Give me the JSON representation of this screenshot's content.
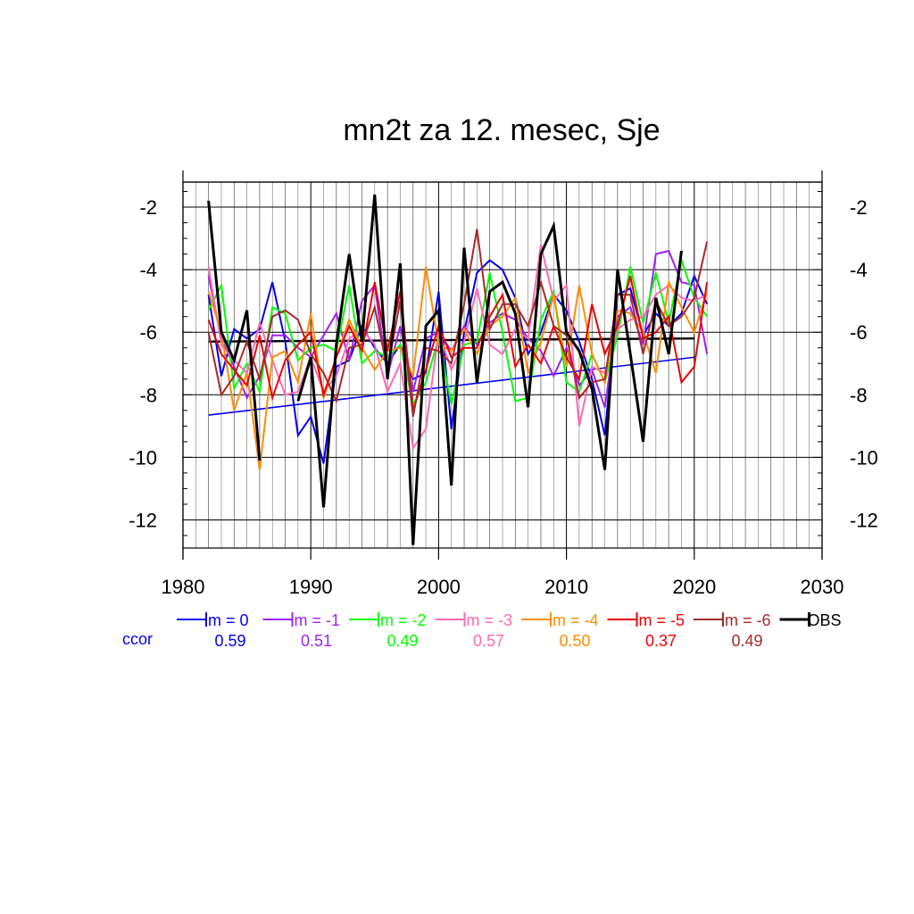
{
  "chart_data": {
    "type": "line",
    "title": "mn2t za 12. mesec, Sje",
    "xlabel": "",
    "ylabel": "",
    "xlim": [
      1980,
      2030
    ],
    "ylim": [
      -12.9,
      -1.2
    ],
    "xticks": [
      1980,
      1990,
      2000,
      2010,
      2020,
      2030
    ],
    "yticks": [
      -2,
      -4,
      -6,
      -8,
      -10,
      -12
    ],
    "grid": true,
    "legend_position": "bottom",
    "ccor_label": "ccor",
    "x": [
      1982,
      1983,
      1984,
      1985,
      1986,
      1987,
      1988,
      1989,
      1990,
      1991,
      1992,
      1993,
      1994,
      1995,
      1996,
      1997,
      1998,
      1999,
      2000,
      2001,
      2002,
      2003,
      2004,
      2005,
      2006,
      2007,
      2008,
      2009,
      2010,
      2011,
      2012,
      2013,
      2014,
      2015,
      2016,
      2017,
      2018,
      2019,
      2020,
      2021
    ],
    "series": [
      {
        "name": "lm = 0",
        "color": "#0000ee",
        "ccor": "0.59",
        "values": [
          -4.8,
          -7.4,
          -5.9,
          -6.2,
          -5.9,
          -4.4,
          -6.3,
          -9.3,
          -8.7,
          -10.2,
          -7.1,
          -6.9,
          -5.8,
          -6.5,
          -7.0,
          -6.4,
          -7.5,
          -7.3,
          -4.7,
          -9.1,
          -6.0,
          -4.1,
          -3.7,
          -4.0,
          -4.9,
          -6.7,
          -6.0,
          -4.8,
          -5.3,
          -6.3,
          -7.5,
          -9.3,
          -4.8,
          -4.6,
          -6.1,
          -5.4,
          -5.8,
          -5.4,
          -4.2,
          -5.1
        ]
      },
      {
        "name": "lm = -1",
        "color": "#a020f0",
        "ccor": "0.51",
        "values": [
          -4.2,
          -6.2,
          -7.1,
          -8.1,
          -7.4,
          -6.1,
          -6.1,
          -6.5,
          -6.8,
          -6.1,
          -5.4,
          -6.9,
          -5.0,
          -4.5,
          -7.4,
          -5.8,
          -7.9,
          -6.2,
          -6.0,
          -6.6,
          -5.8,
          -6.4,
          -5.7,
          -5.4,
          -5.6,
          -6.2,
          -6.6,
          -7.4,
          -6.5,
          -7.7,
          -7.2,
          -8.4,
          -5.5,
          -5.2,
          -6.4,
          -3.5,
          -3.4,
          -4.4,
          -4.5,
          -6.7
        ]
      },
      {
        "name": "lm = -2",
        "color": "#00ff00",
        "ccor": "0.49",
        "values": [
          -5.3,
          -4.5,
          -7.8,
          -7.0,
          -7.9,
          -5.2,
          -5.4,
          -6.9,
          -6.5,
          -6.4,
          -6.6,
          -4.5,
          -7.0,
          -6.6,
          -6.8,
          -6.4,
          -8.3,
          -7.6,
          -6.2,
          -8.3,
          -6.4,
          -6.3,
          -4.1,
          -6.0,
          -8.2,
          -8.1,
          -5.6,
          -4.7,
          -7.6,
          -7.9,
          -6.7,
          -7.6,
          -6.1,
          -3.9,
          -5.7,
          -4.1,
          -5.7,
          -3.7,
          -4.9,
          -5.5
        ]
      },
      {
        "name": "lm = -3",
        "color": "#ff69b4",
        "ccor": "0.57",
        "values": [
          -3.9,
          -6.4,
          -6.9,
          -7.3,
          -5.7,
          -6.9,
          -8.0,
          -7.9,
          -6.8,
          -7.9,
          -7.4,
          -6.2,
          -5.9,
          -6.4,
          -7.9,
          -7.0,
          -9.7,
          -9.1,
          -6.0,
          -7.2,
          -6.3,
          -4.6,
          -6.4,
          -6.7,
          -5.9,
          -6.2,
          -3.2,
          -5.0,
          -4.5,
          -9.0,
          -7.1,
          -7.3,
          -5.9,
          -5.6,
          -5.5,
          -4.8,
          -4.5,
          -4.9,
          -5.0,
          -4.8
        ]
      },
      {
        "name": "lm = -4",
        "color": "#ff8c00",
        "ccor": "0.50",
        "values": [
          -4.7,
          -6.0,
          -8.5,
          -7.3,
          -10.4,
          -6.8,
          -6.6,
          -7.6,
          -5.4,
          -8.1,
          -6.8,
          -5.6,
          -6.5,
          -7.2,
          -6.6,
          -6.5,
          -7.4,
          -3.9,
          -6.4,
          -6.6,
          -5.9,
          -6.7,
          -5.8,
          -5.5,
          -4.9,
          -7.3,
          -6.3,
          -4.8,
          -7.1,
          -4.5,
          -6.7,
          -7.6,
          -5.3,
          -5.4,
          -6.0,
          -7.3,
          -4.4,
          -5.2,
          -6.0,
          -4.7
        ]
      },
      {
        "name": "lm = -5",
        "color": "#ee0000",
        "ccor": "0.37",
        "values": [
          -5.6,
          -6.7,
          -7.2,
          -7.7,
          -6.1,
          -8.1,
          -6.9,
          -6.4,
          -6.0,
          -8.0,
          -6.8,
          -5.8,
          -6.6,
          -4.4,
          -6.6,
          -4.7,
          -8.5,
          -7.2,
          -5.8,
          -6.8,
          -6.5,
          -6.5,
          -5.5,
          -4.8,
          -7.1,
          -6.4,
          -7.0,
          -5.8,
          -6.8,
          -7.5,
          -5.1,
          -6.7,
          -5.8,
          -4.2,
          -6.2,
          -6.0,
          -5.5,
          -7.6,
          -7.1,
          -4.4
        ]
      },
      {
        "name": "lm = -6",
        "color": "#a52a2a",
        "ccor": "0.49",
        "values": [
          -6.0,
          -8.0,
          -7.4,
          -6.3,
          -7.5,
          -5.5,
          -5.3,
          -5.6,
          -6.7,
          -7.3,
          -8.2,
          -6.5,
          -6.4,
          -5.2,
          -7.2,
          -5.0,
          -8.7,
          -6.5,
          -6.6,
          -7.0,
          -5.1,
          -2.7,
          -5.9,
          -5.1,
          -5.1,
          -5.8,
          -4.4,
          -5.8,
          -6.1,
          -8.1,
          -7.6,
          -7.5,
          -4.8,
          -4.8,
          -6.7,
          -5.0,
          -5.8,
          -5.5,
          -4.9,
          -3.1
        ]
      },
      {
        "name": "OBS",
        "color": "#000000",
        "ccor": "",
        "values": [
          -1.8,
          -6.0,
          -6.9,
          -5.3,
          -10.1,
          null,
          null,
          -8.2,
          -6.8,
          -11.6,
          -6.4,
          -3.5,
          -6.3,
          -1.6,
          -7.5,
          -3.8,
          -12.8,
          -5.8,
          -5.3,
          -10.9,
          -3.3,
          -7.6,
          -4.7,
          -4.4,
          -5.4,
          -8.4,
          -3.5,
          -2.6,
          -6.0,
          -6.6,
          -7.8,
          -10.4,
          -4.0,
          -6.7,
          -9.5,
          -4.9,
          -6.7,
          -3.4,
          null,
          null
        ]
      }
    ],
    "trend_lines": [
      {
        "series": "lm = 0",
        "color": "#0000ee",
        "x": [
          1982,
          2020
        ],
        "y": [
          -8.65,
          -6.8
        ]
      },
      {
        "series": "OBS",
        "color": "#000000",
        "x": [
          1982,
          2020
        ],
        "y": [
          -6.3,
          -6.2
        ]
      }
    ]
  }
}
